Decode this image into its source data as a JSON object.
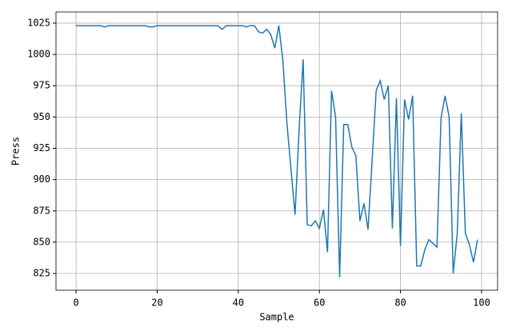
{
  "chart_data": {
    "type": "line",
    "x": [
      0,
      1,
      2,
      3,
      4,
      5,
      6,
      7,
      8,
      9,
      10,
      11,
      12,
      13,
      14,
      15,
      16,
      17,
      18,
      19,
      20,
      21,
      22,
      23,
      24,
      25,
      26,
      27,
      28,
      29,
      30,
      31,
      32,
      33,
      34,
      35,
      36,
      37,
      38,
      39,
      40,
      41,
      42,
      43,
      44,
      45,
      46,
      47,
      48,
      49,
      50,
      51,
      52,
      53,
      54,
      55,
      56,
      57,
      58,
      59,
      60,
      61,
      62,
      63,
      64,
      65,
      66,
      67,
      68,
      69,
      70,
      71,
      72,
      73,
      74,
      75,
      76,
      77,
      78,
      79,
      80,
      81,
      82,
      83,
      84,
      85,
      86,
      87,
      88,
      89,
      90,
      91,
      92,
      93,
      94,
      95,
      96,
      97,
      98,
      99
    ],
    "series": [
      {
        "name": "Press",
        "color": "#1f77b4",
        "values": [
          1023,
          1023,
          1023,
          1023,
          1023,
          1023,
          1023,
          1022,
          1023,
          1023,
          1023,
          1023,
          1023,
          1023,
          1023,
          1023,
          1023,
          1023,
          1022,
          1022,
          1023,
          1023,
          1023,
          1023,
          1023,
          1023,
          1023,
          1023,
          1023,
          1023,
          1023,
          1023,
          1023,
          1023,
          1023,
          1023,
          1020,
          1023,
          1023,
          1023,
          1023,
          1023,
          1022,
          1023,
          1023,
          1018,
          1017,
          1020,
          1016,
          1005,
          1023,
          995,
          945,
          908,
          872,
          940,
          996,
          864,
          863,
          867,
          861,
          876,
          842,
          971,
          950,
          822,
          944,
          944,
          926,
          919,
          867,
          881,
          860,
          915,
          971,
          979,
          964,
          975,
          861,
          965,
          847,
          964,
          948,
          967,
          831,
          831,
          844,
          852,
          849,
          846,
          949,
          967,
          950,
          825,
          857,
          953,
          857,
          848,
          834,
          852
        ]
      }
    ],
    "xlabel": "Sample",
    "ylabel": "Press",
    "xlim": [
      -4.95,
      103.95
    ],
    "ylim": [
      811.6,
      1033.9
    ],
    "xticks": [
      0,
      20,
      40,
      60,
      80,
      100
    ],
    "yticks": [
      825,
      850,
      875,
      900,
      925,
      950,
      975,
      1000,
      1025
    ],
    "grid": true
  }
}
